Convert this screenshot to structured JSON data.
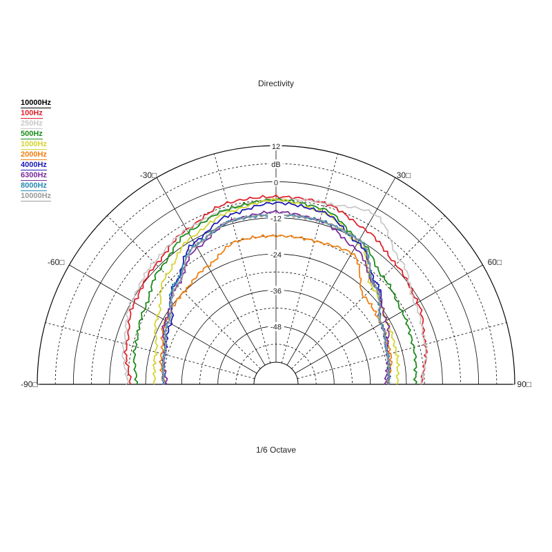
{
  "chart_data": {
    "type": "polar",
    "title": "Directivity",
    "subtitle": "1/6 Octave",
    "radial_unit": "dB",
    "radial_ticks": [
      "12",
      "0",
      "-12",
      "-24",
      "-36",
      "-48"
    ],
    "angle_labels": [
      "-90□",
      "-60□",
      "-30□",
      "30□",
      "60□",
      "90□"
    ],
    "angle_range": [
      -90,
      90
    ],
    "legend_header": "10000Hz",
    "series": [
      {
        "name": "100Hz",
        "color": "#e0202a",
        "angles": [
          -90,
          -75,
          -60,
          -45,
          -30,
          -15,
          0,
          15,
          30,
          45,
          60,
          75,
          90
        ],
        "db": [
          -19,
          -16,
          -13,
          -11,
          -8,
          -5,
          -5,
          -5,
          -8,
          -11,
          -13,
          -16,
          -19
        ]
      },
      {
        "name": "250Hz",
        "color": "#c8c8c8",
        "angles": [
          -90,
          -75,
          -60,
          -45,
          -30,
          -15,
          0,
          15,
          30,
          45,
          60,
          75,
          90
        ],
        "db": [
          -18,
          -15,
          -12,
          -10,
          -8,
          -7,
          -6,
          -5,
          -2,
          -9,
          -14,
          -16,
          -19
        ]
      },
      {
        "name": "500Hz",
        "color": "#1a8a1a",
        "angles": [
          -90,
          -75,
          -60,
          -45,
          -30,
          -15,
          0,
          15,
          30,
          45,
          60,
          75,
          90
        ],
        "db": [
          -21,
          -19,
          -17,
          -13,
          -9,
          -7,
          -6,
          -7,
          -12,
          -17,
          -19,
          -20,
          -21
        ]
      },
      {
        "name": "1000Hz",
        "color": "#d4d430",
        "angles": [
          -90,
          -75,
          -60,
          -45,
          -30,
          -15,
          0,
          15,
          30,
          45,
          60,
          75,
          90
        ],
        "db": [
          -27,
          -26,
          -22,
          -16,
          -11,
          -8,
          -6,
          -8,
          -13,
          -22,
          -25,
          -26,
          -27
        ]
      },
      {
        "name": "2000Hz",
        "color": "#f07f10",
        "angles": [
          -90,
          -75,
          -60,
          -45,
          -30,
          -15,
          0,
          15,
          30,
          45,
          60,
          75,
          90
        ],
        "db": [
          -30,
          -28,
          -25,
          -24,
          -22,
          -18,
          -18,
          -18,
          -17,
          -26,
          -27,
          -28,
          -30
        ]
      },
      {
        "name": "4000Hz",
        "color": "#1a1ab4",
        "angles": [
          -90,
          -75,
          -60,
          -45,
          -30,
          -15,
          0,
          15,
          30,
          45,
          60,
          75,
          90
        ],
        "db": [
          -30,
          -29,
          -27,
          -20,
          -13,
          -9,
          -7,
          -8,
          -13,
          -20,
          -27,
          -29,
          -30
        ]
      },
      {
        "name": "6300Hz",
        "color": "#7a2a9a",
        "angles": [
          -90,
          -75,
          -60,
          -45,
          -30,
          -15,
          0,
          15,
          30,
          45,
          60,
          75,
          90
        ],
        "db": [
          -31,
          -29,
          -25,
          -21,
          -15,
          -11,
          -10,
          -11,
          -15,
          -21,
          -25,
          -29,
          -31
        ]
      },
      {
        "name": "8000Hz",
        "color": "#2a8ab4",
        "angles": [
          -90,
          -75,
          -60,
          -45,
          -30,
          -15,
          0,
          15,
          30,
          45,
          60,
          75,
          90
        ],
        "db": [
          -30,
          -29,
          -26,
          -20,
          -14,
          -11,
          -11,
          -11,
          -12,
          -21,
          -27,
          -29,
          -30
        ]
      },
      {
        "name": "10000Hz",
        "color": "#9a9a9a",
        "angles": [
          -90,
          -75,
          -60,
          -45,
          -30,
          -15,
          0,
          15,
          30,
          45,
          60,
          75,
          90
        ],
        "db": [
          -30,
          -29,
          -26,
          -21,
          -14,
          -11,
          -11,
          -11,
          -12,
          -21,
          -27,
          -29,
          -30
        ]
      }
    ]
  }
}
